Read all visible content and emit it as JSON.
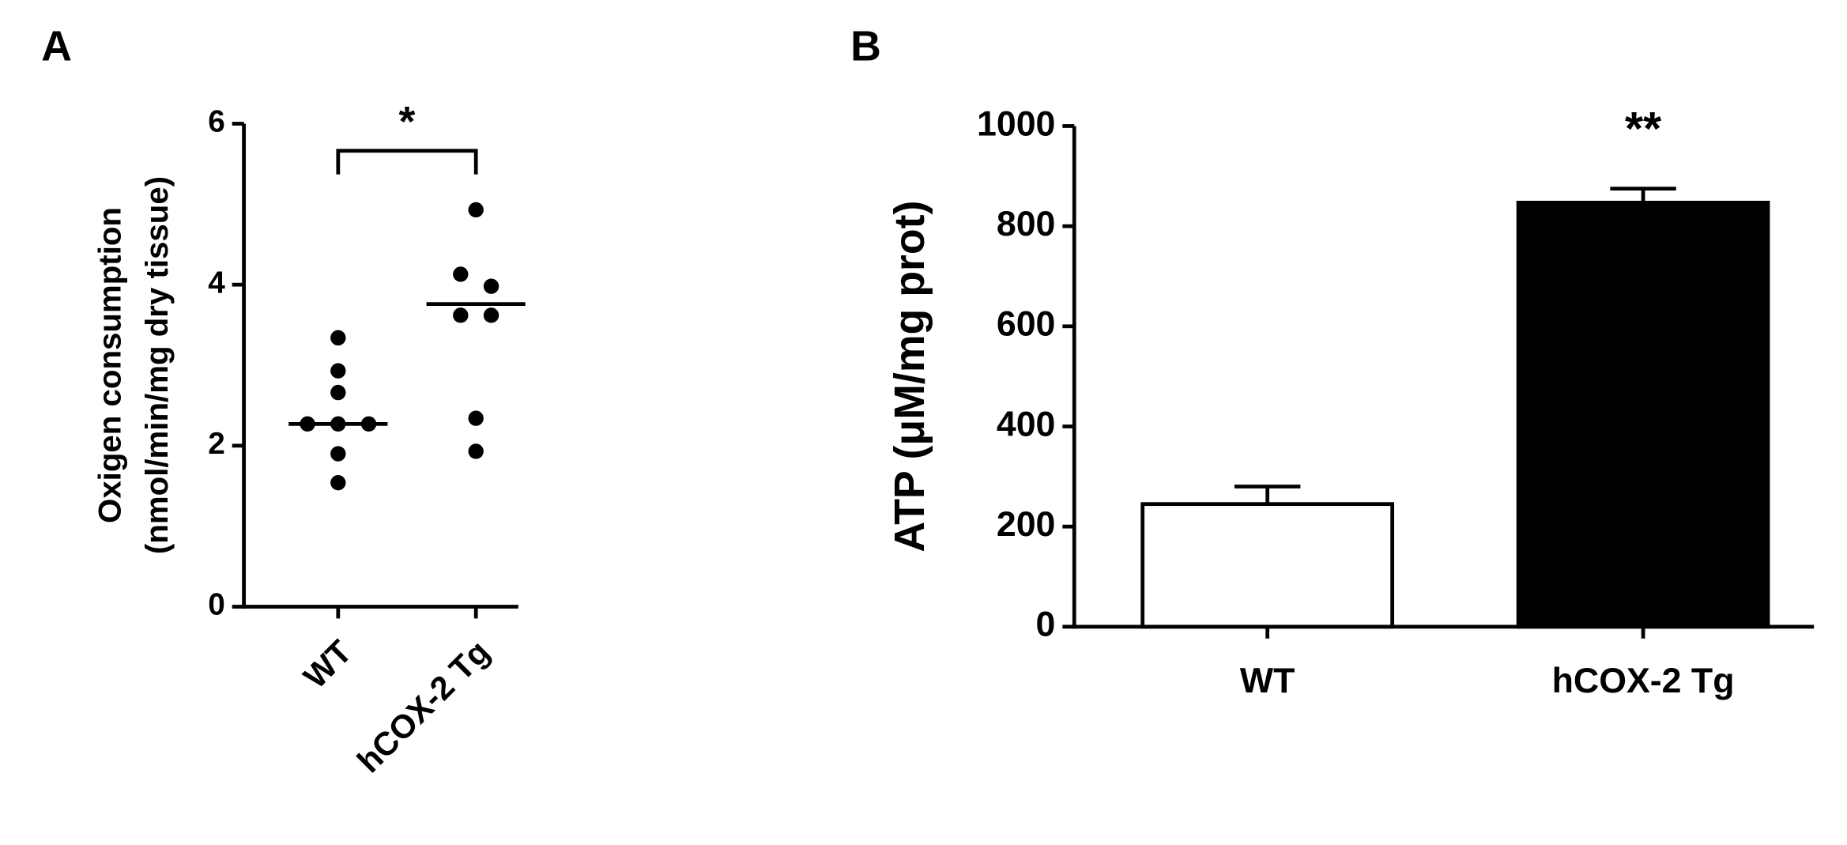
{
  "chart_data": [
    {
      "type": "dot",
      "panel": "A",
      "y_label": [
        "Oxigen consumption",
        "(nmol/min/mg dry tissue)"
      ],
      "categories": [
        "WT",
        "hCOX-2 Tg"
      ],
      "values": [
        [
          3.34,
          2.93,
          2.66,
          2.27,
          2.27,
          2.27,
          1.9,
          1.54
        ],
        [
          4.93,
          4.13,
          3.98,
          3.62,
          3.62,
          2.34,
          1.93
        ]
      ],
      "means": [
        2.27,
        3.76
      ],
      "color": "#000000",
      "ylim": [
        0,
        6
      ],
      "yticks": [
        0,
        2,
        4,
        6
      ],
      "annotation": "*"
    },
    {
      "type": "bar",
      "panel": "B",
      "y_label": "ATP (μM/mg prot)",
      "categories": [
        "WT",
        "hCOX-2 Tg"
      ],
      "values": [
        245,
        847
      ],
      "errors": [
        35,
        28
      ],
      "colors": [
        "#ffffff",
        "#000000"
      ],
      "ylim": [
        0,
        1000
      ],
      "yticks": [
        0,
        200,
        400,
        600,
        800,
        1000
      ],
      "annotation": "**"
    }
  ]
}
